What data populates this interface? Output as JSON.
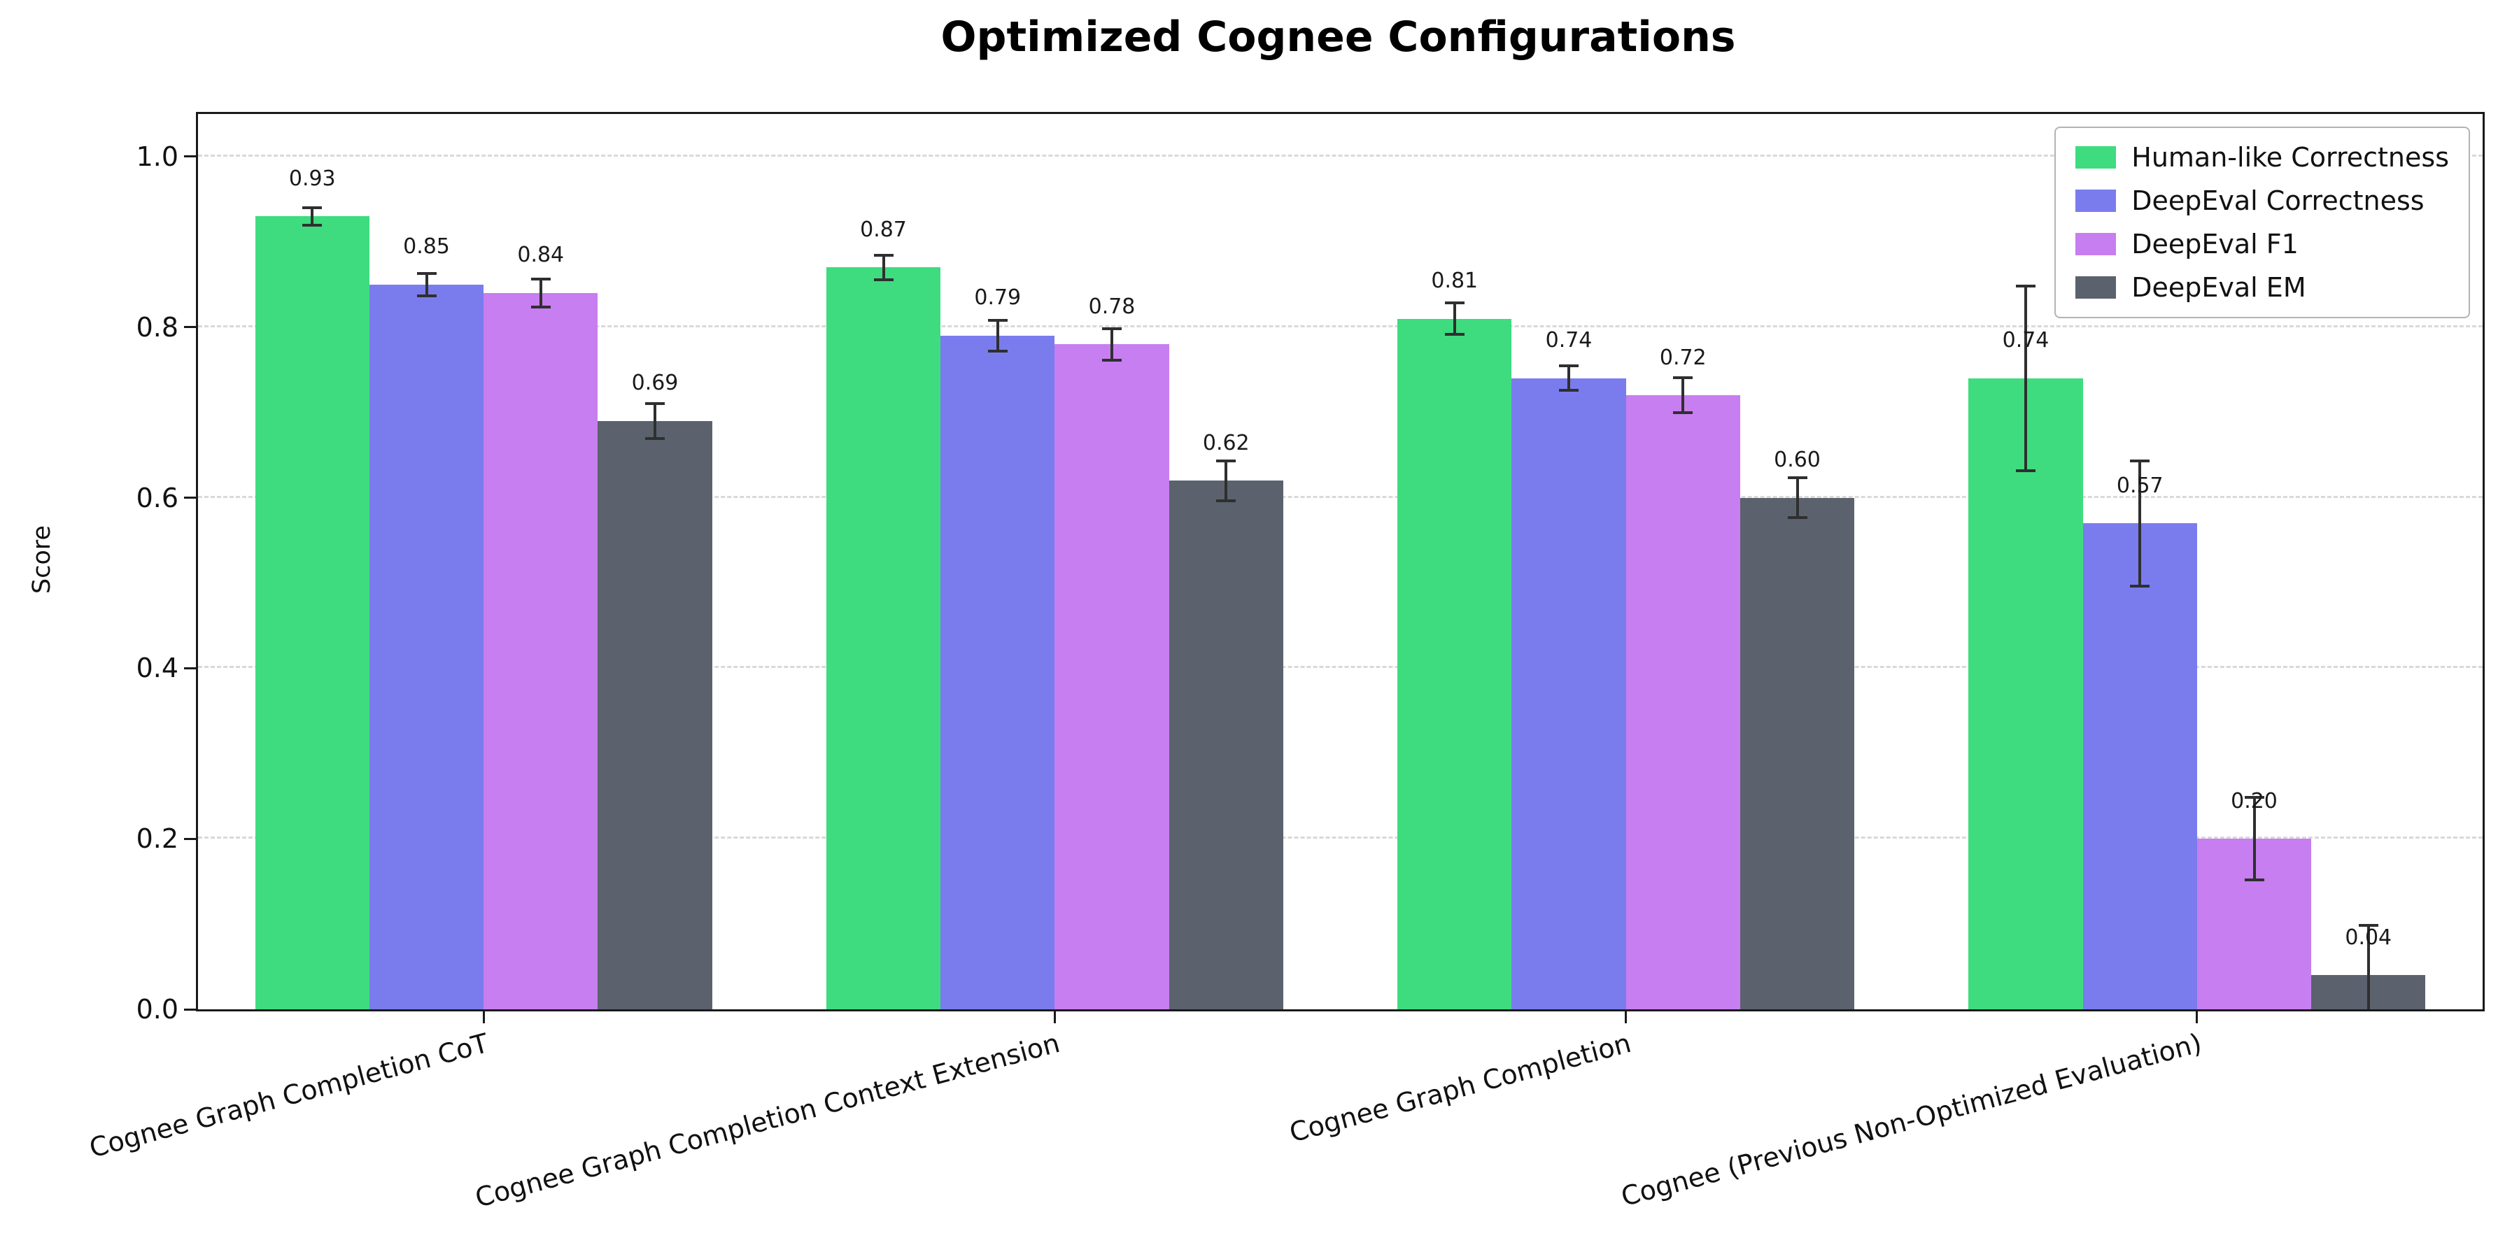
{
  "figure": {
    "title": "Optimized Cognee Configurations"
  },
  "chart_data": {
    "type": "bar",
    "title": "Optimized Cognee Configurations",
    "xlabel": "",
    "ylabel": "Score",
    "ylim": [
      0,
      1.05
    ],
    "yticks": [
      0.0,
      0.2,
      0.4,
      0.6,
      0.8,
      1.0
    ],
    "ytick_labels": [
      "0.0",
      "0.2",
      "0.4",
      "0.6",
      "0.8",
      "1.0"
    ],
    "grid": "horizontal-dashed",
    "legend_position": "upper-right",
    "error_bars": true,
    "categories": [
      "Cognee Graph Completion CoT",
      "Cognee Graph Completion Context Extension",
      "Cognee Graph Completion",
      "Cognee (Previous Non-Optimized Evaluation)"
    ],
    "series": [
      {
        "name": "Human-like Correctness",
        "color": "#3edc7f",
        "values": [
          0.93,
          0.87,
          0.81,
          0.74
        ],
        "errors": [
          0.012,
          0.016,
          0.02,
          0.11
        ],
        "bar_labels": [
          "0.93",
          "0.87",
          "0.81",
          "0.74"
        ]
      },
      {
        "name": "DeepEval Correctness",
        "color": "#7a7cee",
        "values": [
          0.85,
          0.79,
          0.74,
          0.57
        ],
        "errors": [
          0.015,
          0.02,
          0.016,
          0.075
        ],
        "bar_labels": [
          "0.85",
          "0.79",
          "0.74",
          "0.57"
        ]
      },
      {
        "name": "DeepEval F1",
        "color": "#c77ef0",
        "values": [
          0.84,
          0.78,
          0.72,
          0.2
        ],
        "errors": [
          0.018,
          0.02,
          0.022,
          0.05
        ],
        "bar_labels": [
          "0.84",
          "0.78",
          "0.72",
          "0.20"
        ]
      },
      {
        "name": "DeepEval EM",
        "color": "#5b626e",
        "values": [
          0.69,
          0.62,
          0.6,
          0.04
        ],
        "errors": [
          0.022,
          0.025,
          0.025,
          0.06
        ],
        "bar_labels": [
          "0.69",
          "0.62",
          "0.60",
          "0.04"
        ]
      }
    ]
  }
}
